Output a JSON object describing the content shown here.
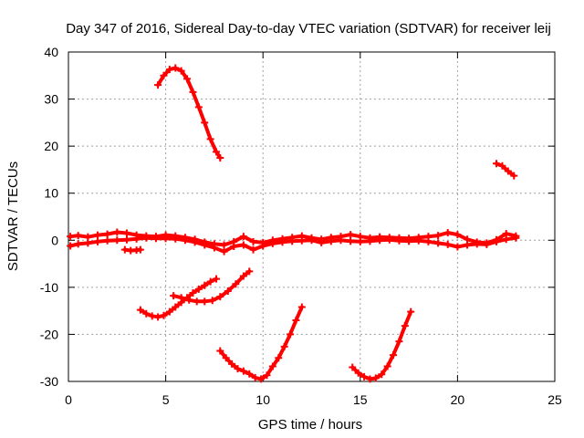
{
  "chart_data": {
    "type": "scatter",
    "title": "Day 347 of 2016, Sidereal Day-to-day VTEC variation (SDTVAR) for receiver leij",
    "xlabel": "GPS time / hours",
    "ylabel": "SDTVAR / TECUs",
    "xlim": [
      0,
      25
    ],
    "ylim": [
      -30,
      40
    ],
    "xticks": [
      "0",
      "5",
      "10",
      "15",
      "20",
      "25"
    ],
    "yticks": [
      "-30",
      "-20",
      "-10",
      "0",
      "10",
      "20",
      "30",
      "40"
    ],
    "grid": true,
    "color": "#ff0000",
    "marker": "plus",
    "series": [
      {
        "x": [
          4.6,
          4.9,
          5.2,
          5.5,
          5.8,
          6.1,
          6.4,
          6.7,
          7.0,
          7.3,
          7.6,
          7.8
        ],
        "y": [
          33.0,
          35.0,
          36.3,
          36.6,
          36.0,
          34.3,
          31.5,
          28.3,
          25.0,
          21.5,
          18.8,
          17.5
        ]
      },
      {
        "x": [
          22.0,
          22.3,
          22.6,
          22.9
        ],
        "y": [
          16.3,
          15.8,
          14.7,
          13.7
        ]
      },
      {
        "x": [
          0.1,
          0.5,
          1.0,
          1.5,
          2.0,
          2.5,
          3.0,
          3.5,
          4.0,
          4.5,
          5.0,
          5.5,
          6.0,
          6.5,
          7.0,
          7.5,
          8.0,
          8.5,
          9.0,
          9.5,
          10.0,
          10.5,
          11.0,
          11.5,
          12.0,
          12.5,
          13.0,
          13.5,
          14.0,
          14.5,
          15.0,
          15.5,
          16.0,
          16.5,
          17.0,
          17.5,
          18.0,
          18.5,
          19.0,
          19.5,
          20.0,
          20.5,
          21.0,
          21.5,
          22.0,
          22.5,
          23.0
        ],
        "y": [
          0.8,
          1.0,
          0.7,
          1.1,
          1.3,
          1.7,
          1.5,
          1.1,
          0.9,
          0.8,
          1.1,
          0.9,
          0.6,
          0.2,
          -0.4,
          -0.8,
          -1.0,
          -0.3,
          0.8,
          -0.3,
          -0.5,
          0.0,
          0.3,
          0.6,
          0.9,
          0.5,
          0.2,
          0.6,
          0.8,
          1.2,
          0.8,
          0.5,
          0.7,
          0.6,
          0.5,
          0.4,
          0.6,
          0.8,
          1.0,
          1.6,
          1.2,
          0.2,
          -0.4,
          -0.6,
          0.1,
          1.4,
          0.9
        ]
      },
      {
        "x": [
          0.1,
          0.5,
          1.0,
          1.5,
          2.0,
          2.5,
          3.0,
          3.5,
          4.0,
          4.5,
          5.0,
          5.5,
          6.0,
          6.5,
          7.0,
          7.5,
          8.0,
          8.5,
          9.0,
          9.5,
          10.0,
          10.5,
          11.0,
          11.5,
          12.0,
          12.5,
          13.0,
          13.5,
          14.0,
          14.5,
          15.0,
          15.5,
          16.0,
          16.5,
          17.0,
          17.5,
          18.0,
          18.5,
          19.0,
          19.5,
          20.0,
          20.5,
          21.0,
          21.5,
          22.0,
          22.5,
          23.0
        ],
        "y": [
          -1.2,
          -0.8,
          -0.6,
          -0.3,
          -0.1,
          0.0,
          0.1,
          0.3,
          0.5,
          0.4,
          0.4,
          0.3,
          0.0,
          -0.4,
          -1.0,
          -1.6,
          -2.4,
          -1.3,
          -1.0,
          -2.0,
          -1.2,
          -0.7,
          -0.4,
          -0.2,
          -0.1,
          0.0,
          -0.5,
          -0.2,
          0.0,
          -0.2,
          -0.3,
          -0.2,
          0.0,
          0.1,
          -0.1,
          -0.2,
          -0.1,
          -0.3,
          -0.6,
          -0.9,
          -1.4,
          -1.0,
          -0.8,
          -0.9,
          -0.3,
          0.2,
          0.5
        ]
      },
      {
        "x": [
          2.9,
          3.2,
          3.5,
          3.7
        ],
        "y": [
          -2.0,
          -2.2,
          -2.1,
          -2.0
        ]
      },
      {
        "x": [
          3.7,
          4.0,
          4.3,
          4.6,
          4.9,
          5.2,
          5.5,
          5.8,
          6.1,
          6.4,
          6.7,
          7.0,
          7.3,
          7.6
        ],
        "y": [
          -14.8,
          -15.6,
          -16.1,
          -16.3,
          -16.0,
          -15.2,
          -14.2,
          -13.2,
          -12.2,
          -11.2,
          -10.4,
          -9.6,
          -8.8,
          -8.2
        ]
      },
      {
        "x": [
          5.4,
          5.8,
          6.2,
          6.6,
          7.0,
          7.4,
          7.8,
          8.2,
          8.6,
          9.0,
          9.3
        ],
        "y": [
          -11.8,
          -12.2,
          -12.7,
          -13.0,
          -13.0,
          -12.8,
          -12.0,
          -10.8,
          -9.3,
          -7.6,
          -6.6
        ]
      },
      {
        "x": [
          7.8,
          8.1,
          8.4,
          8.7,
          9.0,
          9.3,
          9.6,
          9.9,
          10.2,
          10.5,
          10.8,
          11.1,
          11.4,
          11.7,
          12.0
        ],
        "y": [
          -23.5,
          -25.0,
          -26.3,
          -27.3,
          -27.8,
          -28.4,
          -29.2,
          -29.5,
          -28.7,
          -26.8,
          -25.0,
          -22.6,
          -20.0,
          -17.0,
          -14.2
        ]
      },
      {
        "x": [
          14.6,
          14.9,
          15.2,
          15.5,
          15.8,
          16.1,
          16.4,
          16.7,
          17.0,
          17.3,
          17.6
        ],
        "y": [
          -27.0,
          -28.2,
          -29.0,
          -29.5,
          -29.3,
          -28.5,
          -26.8,
          -24.4,
          -21.5,
          -18.2,
          -15.2
        ]
      }
    ]
  }
}
